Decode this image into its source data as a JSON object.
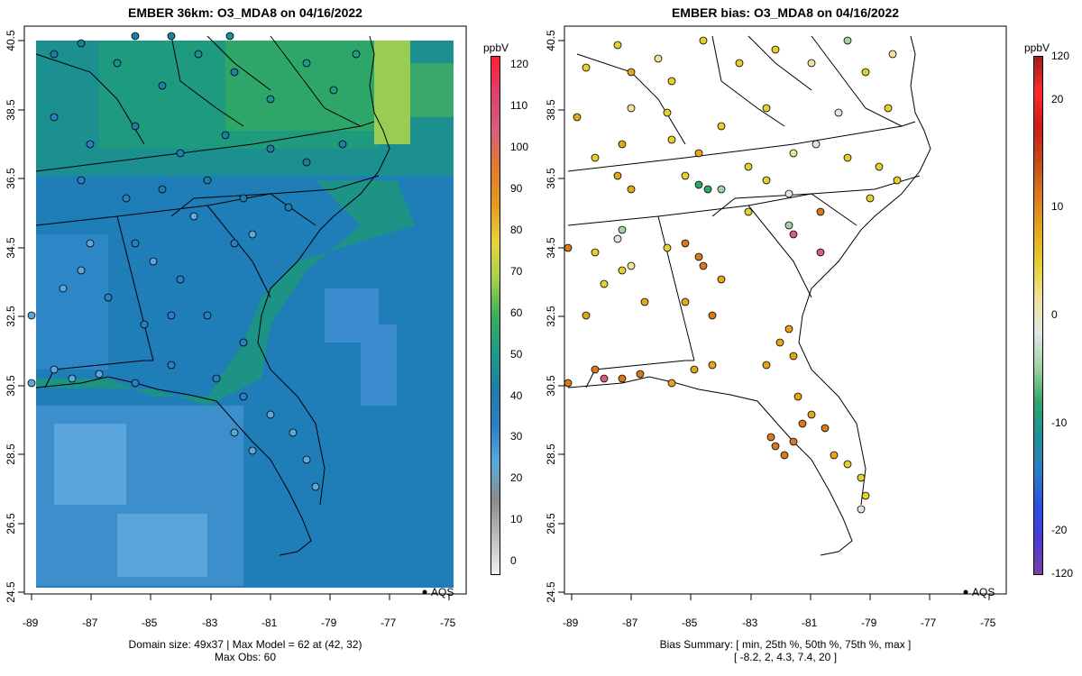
{
  "left_panel": {
    "title": "EMBER 36km: O3_MDA8 on 04/16/2022",
    "caption_line1": "Domain size: 49x37 | Max Model = 62 at (42, 32)",
    "caption_line2": "Max Obs: 60",
    "legend_label": "AQS",
    "colorbar": {
      "unit": "ppbV",
      "ticks": [
        "0",
        "10",
        "20",
        "30",
        "40",
        "50",
        "60",
        "70",
        "80",
        "90",
        "100",
        "110",
        "120"
      ],
      "range": [
        -3,
        122
      ],
      "stops": [
        "#f2f2f2",
        "#bdbdbd",
        "#8a8a8a",
        "#5aa9dc",
        "#2d7fc4",
        "#1f7ea6",
        "#1c9d89",
        "#3aae5c",
        "#a8d14a",
        "#e8d43a",
        "#e39a1d",
        "#e07b2a",
        "#d4607a",
        "#e04070",
        "#ff1f2f"
      ]
    }
  },
  "right_panel": {
    "title": "EMBER bias: O3_MDA8 on 04/16/2022",
    "caption_line1": "Bias Summary: [ min, 25th %, 50th %, 75th %, max ]",
    "caption_line2": "[ -8.2,  2,  4.3,  7.4,  20 ]",
    "legend_label": "AQS",
    "colorbar": {
      "unit": "ppbV",
      "ticks": [
        "120",
        "20",
        "10",
        "0",
        "-10",
        "-20",
        "-120"
      ],
      "tick_values": [
        24,
        20,
        10,
        0,
        -10,
        -20,
        -24
      ],
      "range": [
        -24,
        24
      ],
      "stops": [
        "#7b3fa3",
        "#4a3ad6",
        "#2a4fe0",
        "#2b7fc2",
        "#1f8f96",
        "#2fa66a",
        "#9fd3a4",
        "#e4e4e4",
        "#efe39a",
        "#e6cf2c",
        "#e3a619",
        "#d9781f",
        "#c24a1c",
        "#d11818",
        "#ff2b2b",
        "#a01c1c"
      ]
    }
  },
  "axes": {
    "x_ticks": [
      "-89",
      "-87",
      "-85",
      "-83",
      "-81",
      "-79",
      "-77",
      "-75"
    ],
    "y_ticks": [
      "40.5",
      "38.5",
      "36.5",
      "34.5",
      "32.5",
      "30.5",
      "28.5",
      "26.5",
      "24.5"
    ],
    "lon_range": [
      -89.3,
      -74.5
    ],
    "lat_range": [
      24.3,
      40.9
    ]
  }
}
